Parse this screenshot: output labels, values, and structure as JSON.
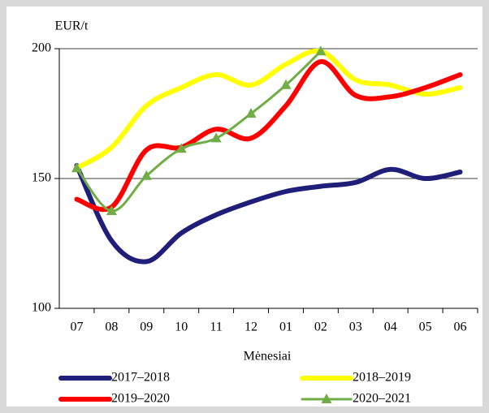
{
  "chart_data": {
    "type": "line",
    "y_label": "EUR/t",
    "x_label": "Mėnesiai",
    "categories": [
      "07",
      "08",
      "09",
      "10",
      "11",
      "12",
      "01",
      "02",
      "03",
      "04",
      "05",
      "06"
    ],
    "series": [
      {
        "name": "2017–2018",
        "color": "#1f1f7a",
        "values": [
          155,
          126,
          118,
          129,
          136,
          141,
          145,
          147,
          148.5,
          153.5,
          150,
          152.5
        ]
      },
      {
        "name": "2018–2019",
        "color": "#ffff00",
        "values": [
          154,
          162,
          178,
          185,
          190,
          186,
          194,
          199,
          188,
          186,
          182.5,
          185
        ]
      },
      {
        "name": "2019–2020",
        "color": "#ff0000",
        "values": [
          142,
          139,
          161,
          162,
          169,
          165.5,
          178,
          195,
          182,
          181.5,
          185,
          190
        ]
      },
      {
        "name": "2020–2021",
        "color": "#70ad47",
        "marker": "triangle",
        "values": [
          154,
          137.5,
          151,
          161.5,
          165.5,
          175,
          186,
          199,
          null,
          null,
          null,
          null
        ]
      }
    ],
    "ylim": [
      100,
      200
    ],
    "yticks": [
      100,
      150,
      200
    ],
    "grid": true
  }
}
